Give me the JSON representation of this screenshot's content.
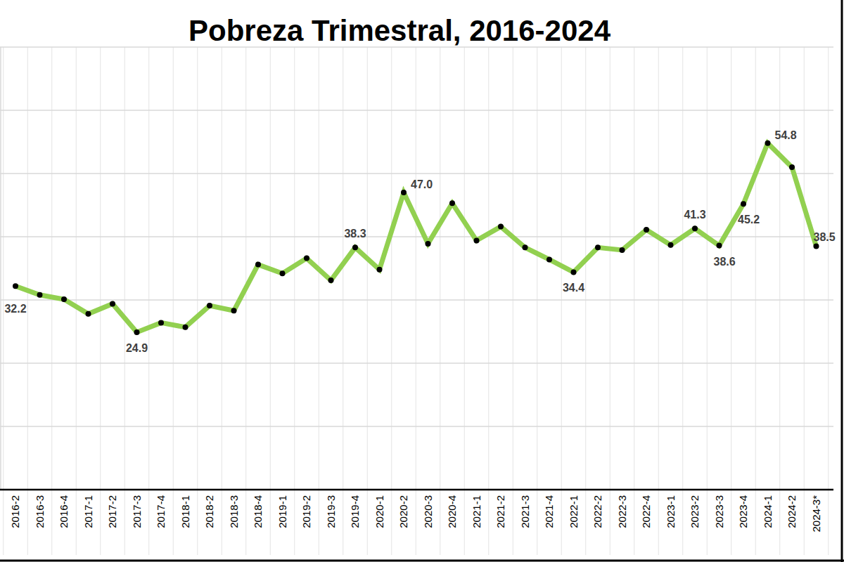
{
  "chart_data": {
    "type": "line",
    "title": "Pobreza Trimestral, 2016-2024",
    "categories": [
      "2016-2",
      "2016-3",
      "2016-4",
      "2017-1",
      "2017-2",
      "2017-3",
      "2017-4",
      "2018-1",
      "2018-2",
      "2018-3",
      "2018-4",
      "2019-1",
      "2019-2",
      "2019-3",
      "2019-4",
      "2020-1",
      "2020-2",
      "2020-3",
      "2020-4",
      "2021-1",
      "2021-2",
      "2021-3",
      "2021-4",
      "2022-1",
      "2022-2",
      "2022-3",
      "2022-4",
      "2023-1",
      "2023-2",
      "2023-3",
      "2023-4",
      "2024-1",
      "2024-2",
      "2024-3*"
    ],
    "values": [
      32.2,
      30.8,
      30.1,
      27.8,
      29.4,
      24.9,
      26.4,
      25.7,
      29.1,
      28.3,
      35.6,
      34.2,
      36.6,
      33.1,
      38.3,
      34.8,
      47.0,
      38.9,
      45.3,
      39.4,
      41.6,
      38.3,
      36.4,
      34.4,
      38.3,
      37.9,
      41.1,
      38.7,
      41.3,
      38.6,
      45.2,
      54.8,
      51.0,
      38.5
    ],
    "value_labels": [
      "32.2",
      null,
      null,
      null,
      null,
      "24.9",
      null,
      null,
      null,
      null,
      null,
      null,
      null,
      null,
      "38.3",
      null,
      "47.0",
      null,
      null,
      null,
      null,
      null,
      null,
      "34.4",
      null,
      null,
      null,
      null,
      "41.3",
      "38.6",
      "45.2",
      "54.8",
      null,
      "38.5"
    ],
    "color": "#92d050",
    "marker": "circle",
    "line_style": "solid",
    "ylim": [
      0,
      70
    ],
    "yticks": [
      0,
      10,
      20,
      30,
      40,
      50,
      60,
      70
    ],
    "grid": true,
    "data_labels": true,
    "tick_labels": "x"
  }
}
